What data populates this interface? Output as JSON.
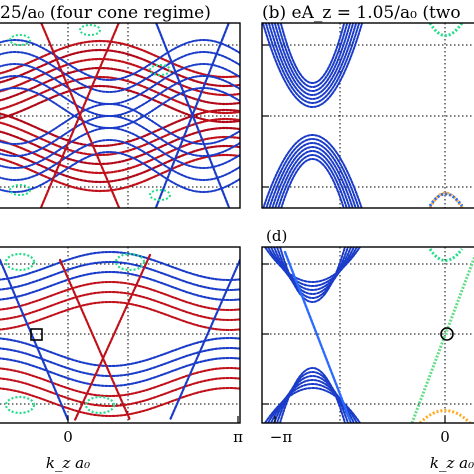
{
  "figure": {
    "panel_titles": {
      "a": "25/a₀ (four cone regime)",
      "b": "(b) eA_z = 1.05/a₀ (two"
    },
    "panel_labels": {
      "d": "(d)"
    },
    "xlabel": "k_z a₀",
    "xticks_left": [
      "0",
      "π"
    ],
    "xticks_right": [
      "−π",
      "0"
    ]
  },
  "chart_data": [
    {
      "panel": "a",
      "type": "line",
      "title": "25/a₀ (four cone regime)",
      "xlabel": "",
      "ylabel": "",
      "xlim": [
        -1.15,
        3.14
      ],
      "ylim": [
        -1,
        1
      ],
      "grid": "dotted",
      "colors": {
        "primary": "#c0101a",
        "secondary": "#1a3cc8",
        "accent": "#22dd88"
      },
      "series": [
        {
          "x": [
            -1.1,
            -0.6,
            0,
            0.6,
            1.1,
            1.7,
            2.3,
            3.1
          ],
          "y": [
            0.95,
            0.6,
            0.05,
            0.6,
            0.95,
            0.55,
            -0.05,
            0.5
          ]
        },
        {
          "x": [
            -1.1,
            -0.6,
            0,
            0.6,
            1.1,
            1.7,
            2.3,
            3.1
          ],
          "y": [
            -0.95,
            -0.6,
            -0.05,
            -0.6,
            -0.95,
            -0.55,
            0.05,
            -0.5
          ]
        }
      ]
    },
    {
      "panel": "b",
      "type": "line",
      "title": "(b) eA_z = 1.05/a₀ (two",
      "xlim": [
        -3.14,
        0.5
      ],
      "ylim": [
        -1,
        1
      ],
      "grid": "dotted",
      "colors": {
        "primary": "#1a3cc8",
        "accent": "#22dd88"
      },
      "series": [
        {
          "x": [
            -3.1,
            -2.3,
            -1.6
          ],
          "y": [
            0.95,
            0.1,
            0.95
          ]
        },
        {
          "x": [
            -3.1,
            -2.3,
            -1.6
          ],
          "y": [
            -0.95,
            -0.1,
            -0.95
          ]
        }
      ]
    },
    {
      "panel": "c",
      "type": "line",
      "xlabel": "k_z a₀",
      "xticks": [
        "0",
        "π"
      ],
      "xlim": [
        -1.15,
        3.14
      ],
      "ylim": [
        -1,
        1
      ],
      "grid": "dotted",
      "colors": {
        "primary": "#c0101a",
        "secondary": "#1a3cc8",
        "accent": "#22dd88"
      },
      "series": [
        {
          "x": [
            -1.1,
            -0.3,
            0.5,
            1.3,
            2.1
          ],
          "y": [
            0.9,
            0.1,
            -0.9,
            0.1,
            0.9
          ]
        }
      ]
    },
    {
      "panel": "d",
      "type": "line",
      "xlabel": "k_z a₀",
      "xticks": [
        "−π",
        "0"
      ],
      "xlim": [
        -3.14,
        0.5
      ],
      "ylim": [
        -1,
        1
      ],
      "grid": "dotted",
      "colors": {
        "primary": "#1a3cc8",
        "accent": "#22dd88"
      },
      "series": [
        {
          "x": [
            -3.1,
            -2.4,
            -1.7
          ],
          "y": [
            0.95,
            0.0,
            -0.95
          ]
        },
        {
          "x": [
            -0.4,
            0,
            0.5
          ],
          "y": [
            -0.95,
            0.0,
            0.95
          ]
        }
      ]
    }
  ]
}
